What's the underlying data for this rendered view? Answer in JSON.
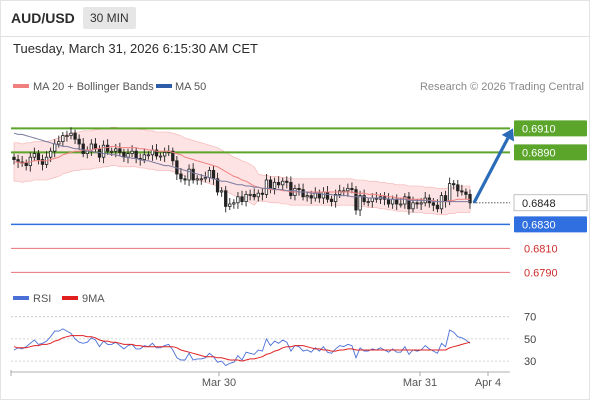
{
  "header": {
    "pair": "AUD/USD",
    "timeframe": "30 MIN",
    "datetime": "Tuesday, March 31, 2026 6:15:30 AM CET"
  },
  "colors": {
    "candle_body": "#222222",
    "bollinger_fill": "#fcd9d9",
    "ma20": "#f08080",
    "ma50": "#7a7aa0",
    "resistance": "#5ba52a",
    "support": "#2f6fdf",
    "red_level": "#e8727a",
    "arrow": "#2b6cb8",
    "rsi": "#4a6fd6",
    "rsi_ma": "#e02020"
  },
  "chart_data": [
    {
      "type": "candlestick",
      "title": "",
      "legend": [
        {
          "name": "MA 20 + Bollinger Bands",
          "color": "#f08080"
        },
        {
          "name": "MA 50",
          "color": "#2f5ca8"
        }
      ],
      "credit": "Research © 2026 Trading Central",
      "x_ticks": [
        "Mar 30",
        "Mar 31",
        "Apr 4"
      ],
      "current_price": "0.6848",
      "levels": [
        {
          "value": "0.6910",
          "kind": "resistance",
          "color": "#5ba52a"
        },
        {
          "value": "0.6890",
          "kind": "resistance",
          "color": "#5ba52a"
        },
        {
          "value": "0.6830",
          "kind": "support",
          "color": "#2f6fdf"
        },
        {
          "value": "0.6810",
          "kind": "support",
          "color": "#e8727a"
        },
        {
          "value": "0.6790",
          "kind": "support",
          "color": "#e8727a"
        }
      ],
      "forecast": {
        "from": 0.6848,
        "to": 0.691
      },
      "ylim": [
        0.6782,
        0.6922
      ],
      "series": [
        {
          "kind": "close",
          "values": [
            0.6884,
            0.6882,
            0.6881,
            0.6879,
            0.6886,
            0.6889,
            0.6884,
            0.688,
            0.6886,
            0.6891,
            0.6897,
            0.6899,
            0.6904,
            0.6904,
            0.6906,
            0.6901,
            0.6897,
            0.6889,
            0.6892,
            0.6897,
            0.6893,
            0.6886,
            0.6896,
            0.6891,
            0.6891,
            0.6893,
            0.689,
            0.6886,
            0.6889,
            0.6891,
            0.6885,
            0.6884,
            0.6888,
            0.6888,
            0.6892,
            0.6887,
            0.6887,
            0.689,
            0.6891,
            0.6883,
            0.6872,
            0.6868,
            0.6867,
            0.6876,
            0.6867,
            0.6868,
            0.6868,
            0.6869,
            0.6875,
            0.6868,
            0.6857,
            0.6858,
            0.6845,
            0.6847,
            0.6848,
            0.6853,
            0.6849,
            0.6855,
            0.6855,
            0.6853,
            0.6856,
            0.6855,
            0.6867,
            0.686,
            0.6865,
            0.6863,
            0.6866,
            0.6865,
            0.6854,
            0.686,
            0.6859,
            0.6853,
            0.6854,
            0.6852,
            0.6856,
            0.6852,
            0.6857,
            0.6851,
            0.6849,
            0.6855,
            0.6858,
            0.6858,
            0.686,
            0.6859,
            0.6842,
            0.6854,
            0.6849,
            0.6849,
            0.6852,
            0.6851,
            0.6853,
            0.6851,
            0.6847,
            0.6851,
            0.6847,
            0.6847,
            0.6853,
            0.6843,
            0.6848,
            0.6847,
            0.6848,
            0.6852,
            0.6848,
            0.6846,
            0.6843,
            0.6854,
            0.6849,
            0.6864,
            0.6863,
            0.6858,
            0.6857,
            0.6855,
            0.6848
          ]
        },
        {
          "kind": "ma20",
          "values": [
            0.6882,
            0.6882,
            0.6881,
            0.6882,
            0.6882,
            0.6883,
            0.6883,
            0.6883,
            0.6883,
            0.6884,
            0.6885,
            0.6886,
            0.6888,
            0.6889,
            0.689,
            0.6891,
            0.6891,
            0.6892,
            0.6892,
            0.6892,
            0.6893,
            0.6893,
            0.6894,
            0.6894,
            0.6895,
            0.6895,
            0.6894,
            0.6894,
            0.6894,
            0.6894,
            0.6894,
            0.6893,
            0.6893,
            0.6892,
            0.6892,
            0.6891,
            0.6891,
            0.6891,
            0.6891,
            0.689,
            0.6889,
            0.6888,
            0.6886,
            0.6885,
            0.6884,
            0.6883,
            0.6882,
            0.6881,
            0.688,
            0.6879,
            0.6878,
            0.6876,
            0.6874,
            0.6872,
            0.687,
            0.6869,
            0.6867,
            0.6866,
            0.6864,
            0.6862,
            0.6861,
            0.686,
            0.686,
            0.6859,
            0.6859,
            0.6859,
            0.6858,
            0.6858,
            0.6857,
            0.6857,
            0.6857,
            0.6857,
            0.6857,
            0.6857,
            0.6857,
            0.6857,
            0.6857,
            0.6857,
            0.6857,
            0.6857,
            0.6857,
            0.6857,
            0.6857,
            0.6857,
            0.6856,
            0.6856,
            0.6856,
            0.6855,
            0.6855,
            0.6855,
            0.6854,
            0.6854,
            0.6853,
            0.6853,
            0.6852,
            0.6852,
            0.6852,
            0.6851,
            0.6851,
            0.6851,
            0.6851,
            0.685,
            0.685,
            0.685,
            0.6849,
            0.6849,
            0.6849,
            0.685,
            0.685,
            0.6851,
            0.6851,
            0.6851,
            0.6851
          ]
        },
        {
          "kind": "ma50",
          "values": [
            0.6906,
            0.6905,
            0.6905,
            0.6904,
            0.6903,
            0.6902,
            0.6901,
            0.69,
            0.6899,
            0.6898,
            0.6897,
            0.6896,
            0.6895,
            0.6895,
            0.6894,
            0.6893,
            0.6893,
            0.6892,
            0.6891,
            0.6891,
            0.689,
            0.689,
            0.6889,
            0.6889,
            0.6888,
            0.6888,
            0.6887,
            0.6886,
            0.6886,
            0.6885,
            0.6885,
            0.6884,
            0.6883,
            0.6883,
            0.6882,
            0.6881,
            0.688,
            0.6879,
            0.6879,
            0.6878,
            0.6877,
            0.6876,
            0.6875,
            0.6874,
            0.6873,
            0.6872,
            0.6871,
            0.687,
            0.6869,
            0.6868,
            0.6867,
            0.6866,
            0.6866,
            0.6865,
            0.6864,
            0.6863,
            0.6863,
            0.6862,
            0.6862,
            0.6861,
            0.6861,
            0.686,
            0.686,
            0.686,
            0.6859,
            0.6859,
            0.6859,
            0.6858,
            0.6858,
            0.6858,
            0.6857,
            0.6857,
            0.6857,
            0.6856,
            0.6856,
            0.6856,
            0.6855,
            0.6855,
            0.6855,
            0.6854,
            0.6854,
            0.6854,
            0.6854,
            0.6853,
            0.6853,
            0.6853,
            0.6853,
            0.6852,
            0.6852,
            0.6852,
            0.6852,
            0.6852,
            0.6851,
            0.6851,
            0.6851,
            0.6851,
            0.6851,
            0.685,
            0.685,
            0.685,
            0.685,
            0.685,
            0.685,
            0.6849,
            0.6849,
            0.6849,
            0.6849,
            0.6849,
            0.6849,
            0.6849,
            0.6849,
            0.6849,
            0.6849
          ]
        }
      ]
    },
    {
      "type": "line",
      "title": "",
      "legend": [
        {
          "name": "RSI",
          "color": "#4a6fd6"
        },
        {
          "name": "9MA",
          "color": "#e02020"
        }
      ],
      "y_ticks": [
        "70",
        "50",
        "30"
      ],
      "ylim": [
        22,
        76
      ],
      "series": [
        {
          "name": "RSI",
          "values": [
            40,
            42,
            41,
            43,
            46,
            49,
            45,
            46,
            48,
            52,
            57,
            57,
            59,
            57,
            55,
            50,
            47,
            46,
            47,
            51,
            49,
            43,
            48,
            45,
            45,
            47,
            44,
            41,
            44,
            45,
            41,
            41,
            44,
            43,
            46,
            42,
            42,
            44,
            45,
            40,
            33,
            31,
            31,
            37,
            31,
            32,
            32,
            33,
            37,
            34,
            29,
            30,
            26,
            28,
            29,
            35,
            31,
            38,
            37,
            36,
            40,
            39,
            50,
            44,
            48,
            46,
            49,
            47,
            39,
            44,
            43,
            39,
            40,
            38,
            42,
            39,
            43,
            38,
            37,
            41,
            44,
            43,
            45,
            44,
            33,
            42,
            39,
            39,
            41,
            40,
            42,
            40,
            38,
            41,
            38,
            38,
            43,
            36,
            40,
            39,
            40,
            44,
            41,
            39,
            37,
            46,
            43,
            58,
            56,
            52,
            51,
            49,
            46
          ]
        },
        {
          "name": "9MA",
          "values": [
            43,
            42,
            42,
            42,
            43,
            44,
            44,
            45,
            45,
            46,
            48,
            49,
            51,
            52,
            53,
            53,
            53,
            53,
            52,
            52,
            51,
            49,
            48,
            48,
            47,
            47,
            46,
            45,
            45,
            45,
            44,
            44,
            43,
            43,
            43,
            43,
            43,
            43,
            43,
            43,
            42,
            40,
            39,
            38,
            37,
            36,
            35,
            34,
            34,
            34,
            33,
            33,
            32,
            31,
            31,
            31,
            30,
            31,
            32,
            32,
            33,
            34,
            36,
            37,
            39,
            40,
            42,
            43,
            43,
            44,
            44,
            44,
            43,
            42,
            41,
            41,
            40,
            40,
            39,
            39,
            40,
            40,
            41,
            41,
            40,
            40,
            40,
            40,
            40,
            40,
            40,
            40,
            40,
            40,
            40,
            40,
            40,
            40,
            40,
            40,
            40,
            40,
            40,
            40,
            40,
            40,
            40,
            42,
            43,
            44,
            45,
            46,
            47
          ]
        }
      ]
    }
  ]
}
